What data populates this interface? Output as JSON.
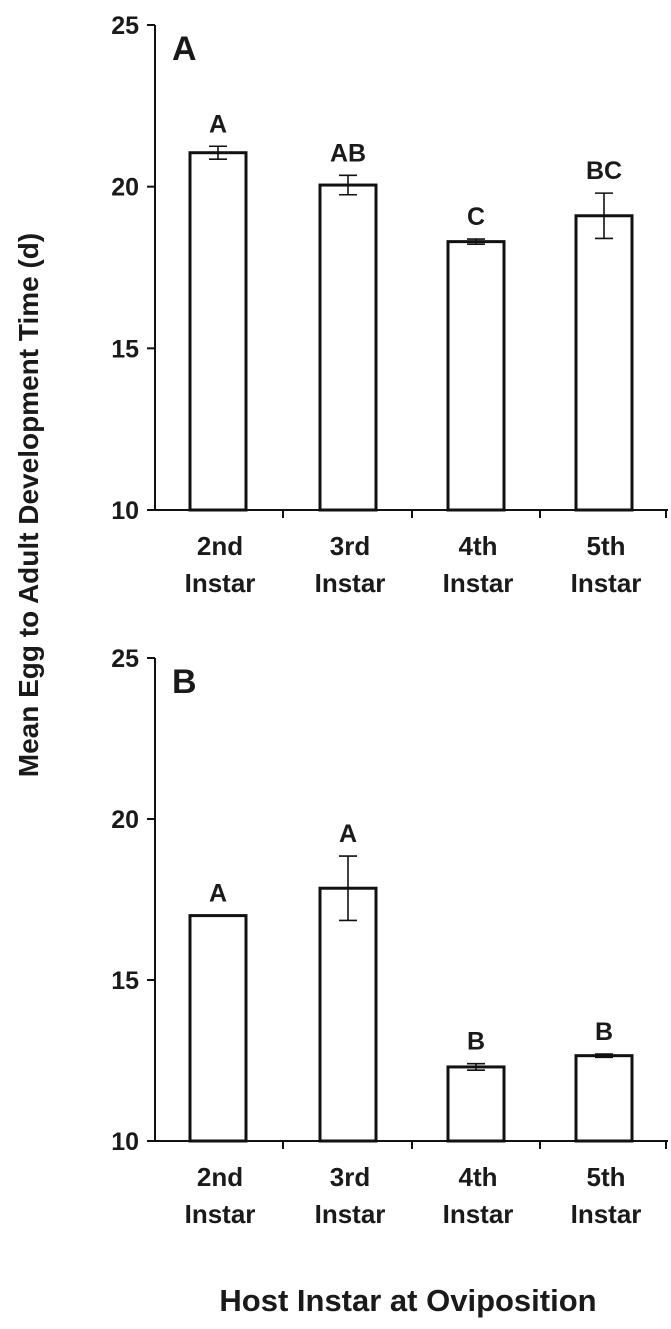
{
  "ylabel": "Mean Egg to Adult Development Time (d)",
  "xlabel": "Host Instar at Oviposition",
  "chart_data": [
    {
      "type": "bar",
      "panel": "A",
      "categories": [
        [
          "2nd",
          "Instar"
        ],
        [
          "3rd",
          "Instar"
        ],
        [
          "4th",
          "Instar"
        ],
        [
          "5th",
          "Instar"
        ]
      ],
      "values": [
        21.05,
        20.05,
        18.3,
        19.1
      ],
      "errors": [
        0.2,
        0.3,
        0.08,
        0.7
      ],
      "letters": [
        "A",
        "AB",
        "C",
        "BC"
      ],
      "ylim": [
        10,
        25
      ],
      "yticks": [
        10,
        15,
        20,
        25
      ],
      "grid": false
    },
    {
      "type": "bar",
      "panel": "B",
      "categories": [
        [
          "2nd",
          "Instar"
        ],
        [
          "3rd",
          "Instar"
        ],
        [
          "4th",
          "Instar"
        ],
        [
          "5th",
          "Instar"
        ]
      ],
      "values": [
        17.0,
        17.85,
        12.3,
        12.65
      ],
      "errors": [
        0,
        1.0,
        0.1,
        0.05
      ],
      "letters": [
        "A",
        "A",
        "B",
        "B"
      ],
      "ylim": [
        10,
        25
      ],
      "yticks": [
        10,
        15,
        20,
        25
      ],
      "grid": false
    }
  ]
}
